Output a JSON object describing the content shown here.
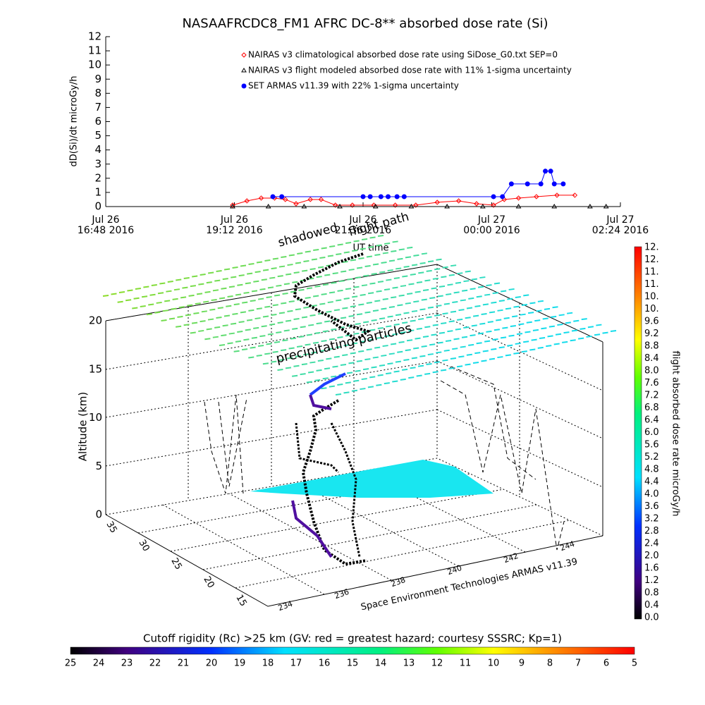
{
  "chart_data": [
    {
      "type": "line",
      "title": "NASAAFRCDC8_FM1 AFRC DC-8** absorbed dose rate (Si)",
      "y_label": "dD(Si)/dt microGy/h",
      "x_label": "UT time",
      "xlim": [
        "2016-07-26T16:48",
        "2016-07-27T02:24"
      ],
      "xticks": [
        {
          "value": "2016-07-26T16:48",
          "label": "Jul 26\n16:48 2016"
        },
        {
          "value": "2016-07-26T19:12",
          "label": "Jul 26\n19:12 2016"
        },
        {
          "value": "2016-07-26T21:36",
          "label": "Jul 26\n21:36 2016"
        },
        {
          "value": "2016-07-27T00:00",
          "label": "Jul 27\n00:00 2016"
        },
        {
          "value": "2016-07-27T02:24",
          "label": "Jul 27\n02:24 2016"
        }
      ],
      "ylim": [
        0,
        12
      ],
      "yticks": [
        0,
        1,
        2,
        3,
        4,
        5,
        6,
        7,
        8,
        9,
        10,
        11,
        12
      ],
      "series": [
        {
          "name": "NAIRAS v3 climatological absorbed dose rate using SiDose_G0.txt SEP=0",
          "color": "#ff0000",
          "marker": "diamond",
          "x": [
            "2016-07-26T19:10",
            "2016-07-26T19:26",
            "2016-07-26T19:42",
            "2016-07-26T19:57",
            "2016-07-26T20:09",
            "2016-07-26T20:21",
            "2016-07-26T20:37",
            "2016-07-26T20:49",
            "2016-07-26T21:05",
            "2016-07-26T21:24",
            "2016-07-26T21:48",
            "2016-07-26T22:12",
            "2016-07-26T22:35",
            "2016-07-26T22:59",
            "2016-07-26T23:23",
            "2016-07-26T23:43",
            "2016-07-27T00:02",
            "2016-07-27T00:14",
            "2016-07-27T00:30",
            "2016-07-27T00:50",
            "2016-07-27T01:13",
            "2016-07-27T01:33"
          ],
          "values": [
            0.1,
            0.4,
            0.6,
            0.6,
            0.5,
            0.2,
            0.5,
            0.5,
            0.1,
            0.1,
            0.1,
            0.1,
            0.1,
            0.3,
            0.4,
            0.2,
            0.1,
            0.5,
            0.6,
            0.7,
            0.8,
            0.8
          ]
        },
        {
          "name": "NAIRAS v3 flight modeled absorbed dose rate with 11% 1-sigma uncertainty",
          "color": "#000000",
          "marker": "triangle",
          "x": [
            "2016-07-26T19:10",
            "2016-07-26T19:50",
            "2016-07-26T20:30",
            "2016-07-26T21:10",
            "2016-07-26T21:50",
            "2016-07-26T22:30",
            "2016-07-26T23:10",
            "2016-07-26T23:50",
            "2016-07-27T00:30",
            "2016-07-27T01:10",
            "2016-07-27T01:50",
            "2016-07-27T02:08"
          ],
          "values": [
            0,
            0,
            0,
            0,
            0,
            0,
            0,
            0,
            0,
            0,
            0,
            0
          ]
        },
        {
          "name": "SET ARMAS v11.39 with 22% 1-sigma uncertainty",
          "color": "#0000ff",
          "marker": "circle",
          "x": [
            "2016-07-26T19:55",
            "2016-07-26T20:05",
            "2016-07-26T21:36",
            "2016-07-26T21:44",
            "2016-07-26T21:56",
            "2016-07-26T22:04",
            "2016-07-26T22:14",
            "2016-07-26T22:22",
            "2016-07-27T00:02",
            "2016-07-27T00:12",
            "2016-07-27T00:22",
            "2016-07-27T00:40",
            "2016-07-27T00:55",
            "2016-07-27T01:00",
            "2016-07-27T01:06",
            "2016-07-27T01:10",
            "2016-07-27T01:20"
          ],
          "values": [
            0.7,
            0.7,
            0.7,
            0.7,
            0.7,
            0.7,
            0.7,
            0.7,
            0.7,
            0.7,
            1.6,
            1.6,
            1.6,
            2.5,
            2.5,
            1.6,
            1.6
          ]
        }
      ]
    }
  ],
  "surface_plot": {
    "annotations": [
      "shadowed",
      "flight path",
      "precipitating particles"
    ],
    "z_label": "Altitude (km)",
    "z_ticks": [
      "0",
      "5",
      "10",
      "15",
      "20"
    ],
    "lat_ticks": [
      "35",
      "30",
      "25",
      "20",
      "15"
    ],
    "lon_ticks": [
      "234",
      "236",
      "238",
      "240",
      "242",
      "244"
    ],
    "caption": "Space Environment Technologies ARMAS v11.39"
  },
  "dose_colorbar": {
    "label": "flight absorbed dose rate microGy/h",
    "tick_labels": [
      "0.0",
      "0.4",
      "0.8",
      "1.2",
      "1.6",
      "2.0",
      "2.4",
      "2.8",
      "3.2",
      "3.6",
      "4.0",
      "4.4",
      "4.8",
      "5.2",
      "5.6",
      "6.0",
      "6.4",
      "6.8",
      "7.2",
      "7.6",
      "8.0",
      "8.4",
      "8.8",
      "9.2",
      "9.6",
      "10.",
      "10.",
      "11.",
      "11.",
      "12.",
      "12."
    ]
  },
  "rigidity_colorbar": {
    "label": "Cutoff rigidity (Rc) >25 km (GV: red = greatest hazard; courtesy SSSRC; Kp=1)",
    "tick_labels": [
      "25",
      "24",
      "23",
      "22",
      "21",
      "20",
      "19",
      "18",
      "17",
      "16",
      "15",
      "14",
      "13",
      "12",
      "11",
      "10",
      "9",
      "8",
      "7",
      "6",
      "5"
    ]
  }
}
